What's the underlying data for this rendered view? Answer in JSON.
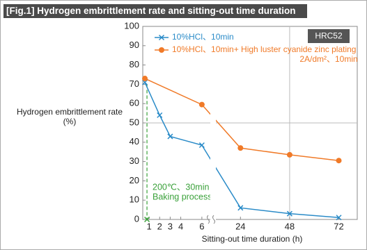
{
  "chart_data": {
    "type": "line",
    "title": "[Fig.1] Hydrogen embrittlement rate and sitting-out time duration",
    "badge": "HRC52",
    "y_label": [
      "Hydrogen embrittlement rate",
      "(%)"
    ],
    "x_label": "Sitting-out time duration (h)",
    "ylim": [
      0,
      100
    ],
    "yticks": [
      0,
      10,
      20,
      30,
      40,
      50,
      60,
      70,
      80,
      90,
      100
    ],
    "x_segments": [
      {
        "xlim": [
          0.4,
          6.8
        ],
        "xticks": [
          1,
          2,
          3,
          4,
          6
        ]
      },
      {
        "xlim": [
          12,
          81
        ],
        "xticks": [
          24,
          48,
          72
        ]
      }
    ],
    "grid_y": [
      50
    ],
    "grid_x": [
      48
    ],
    "series": [
      {
        "name": [
          "10%HCl、10min"
        ],
        "color": "#2a8bc8",
        "marker": "x",
        "x": [
          0.6,
          2,
          3,
          6,
          24,
          48,
          72
        ],
        "values": [
          71,
          54,
          43,
          38.5,
          6,
          3,
          1
        ]
      },
      {
        "name": [
          "10%HCl、10min+ High luster cyanide zinc plating",
          "2A/dm²、10min"
        ],
        "color": "#f07a28",
        "marker": "circle",
        "x": [
          0.6,
          6,
          24,
          48,
          72
        ],
        "values": [
          73,
          59.5,
          37,
          33.5,
          30.5
        ]
      }
    ],
    "annotation": {
      "text": [
        "200℃、30min",
        "Baking process"
      ],
      "color": "#3aa13a",
      "x": 0.8,
      "from": 70,
      "to": 0
    }
  }
}
